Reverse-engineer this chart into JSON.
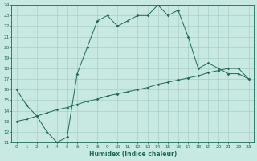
{
  "line1_x": [
    0,
    1,
    2,
    3,
    4,
    5,
    6,
    7,
    8,
    9,
    10,
    11,
    12,
    13,
    14,
    15,
    16,
    17,
    18,
    19,
    20,
    21,
    22,
    23
  ],
  "line1_y": [
    16.0,
    14.5,
    13.5,
    12.0,
    11.0,
    11.5,
    17.5,
    20.0,
    22.5,
    23.0,
    22.0,
    22.5,
    23.0,
    23.0,
    24.0,
    23.0,
    23.5,
    21.0,
    18.0,
    18.5,
    18.0,
    17.5,
    17.5,
    17.0
  ],
  "line2_x": [
    0,
    1,
    2,
    3,
    4,
    5,
    6,
    7,
    8,
    9,
    10,
    11,
    12,
    13,
    14,
    15,
    16,
    17,
    18,
    19,
    20,
    21,
    22,
    23
  ],
  "line2_y": [
    13.0,
    13.2,
    13.5,
    13.8,
    14.1,
    14.3,
    14.6,
    14.9,
    15.1,
    15.4,
    15.6,
    15.8,
    16.0,
    16.2,
    16.5,
    16.7,
    16.9,
    17.1,
    17.3,
    17.6,
    17.8,
    18.0,
    18.0,
    17.0
  ],
  "line_color": "#1a6b5a",
  "bg_color": "#c8e8e2",
  "grid_color": "#9fc8c0",
  "xlabel": "Humidex (Indice chaleur)",
  "ylim": [
    11,
    24
  ],
  "xlim": [
    -0.5,
    23.5
  ],
  "yticks": [
    11,
    12,
    13,
    14,
    15,
    16,
    17,
    18,
    19,
    20,
    21,
    22,
    23,
    24
  ],
  "xticks": [
    0,
    1,
    2,
    3,
    4,
    5,
    6,
    7,
    8,
    9,
    10,
    11,
    12,
    13,
    14,
    15,
    16,
    17,
    18,
    19,
    20,
    21,
    22,
    23
  ]
}
